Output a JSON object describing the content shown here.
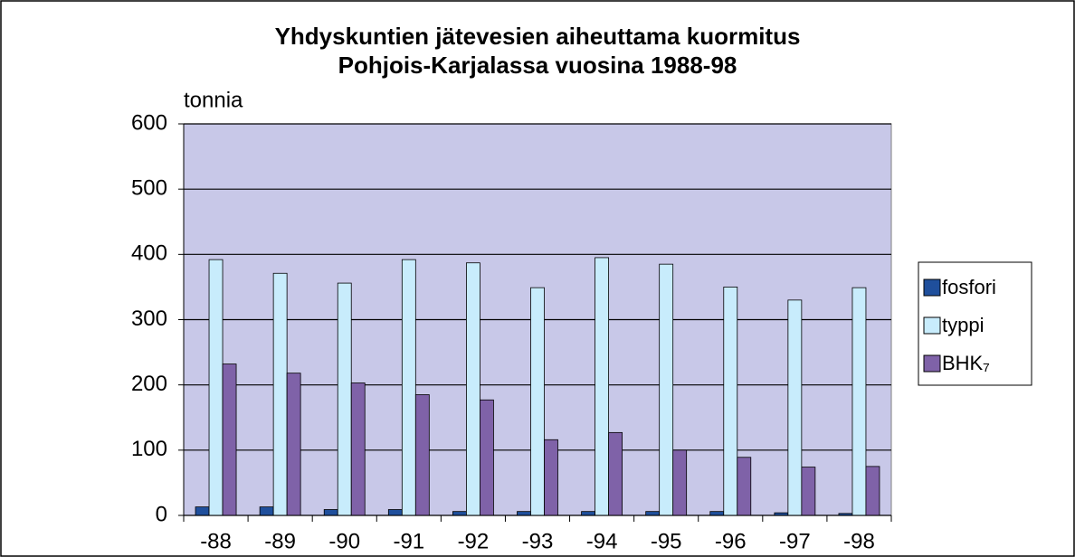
{
  "chart_data": {
    "type": "bar",
    "title": [
      "Yhdyskuntien jätevesien aiheuttama kuormitus",
      "Pohjois-Karjalassa vuosina 1988-98"
    ],
    "y_label": "tonnia",
    "categories": [
      "-88",
      "-89",
      "-90",
      "-91",
      "-92",
      "-93",
      "-94",
      "-95",
      "-96",
      "-97",
      "-98"
    ],
    "series": [
      {
        "name": "fosfori",
        "color": "#1f4f9c",
        "values": [
          13,
          13,
          9,
          9,
          6,
          6,
          6,
          6,
          6,
          4,
          3
        ]
      },
      {
        "name": "typpi",
        "color": "#c8ecfc",
        "values": [
          392,
          371,
          356,
          392,
          387,
          349,
          395,
          385,
          350,
          330,
          349
        ]
      },
      {
        "name": "BHK₇",
        "color": "#7f62a8",
        "values": [
          232,
          218,
          203,
          185,
          177,
          116,
          127,
          100,
          89,
          74,
          75
        ]
      }
    ],
    "ylim": [
      0,
      600
    ],
    "yticks": [
      0,
      100,
      200,
      300,
      400,
      500,
      600
    ],
    "grid": true,
    "legend": "right"
  }
}
